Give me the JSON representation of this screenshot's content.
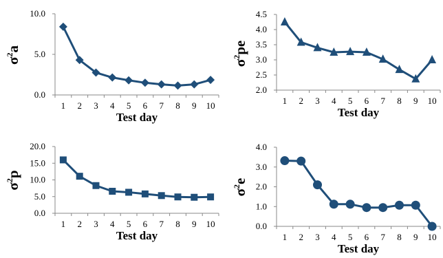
{
  "colors": {
    "series": "#1f4e79"
  },
  "chart_data": [
    {
      "type": "line",
      "marker": "diamond",
      "ylabel": {
        "base": "σ",
        "sup": "2",
        "rest": "a"
      },
      "xlabel": "Test day",
      "categories": [
        "1",
        "2",
        "3",
        "4",
        "5",
        "6",
        "7",
        "8",
        "9",
        "10"
      ],
      "values": [
        8.4,
        4.3,
        2.75,
        2.15,
        1.8,
        1.5,
        1.3,
        1.15,
        1.3,
        1.85
      ],
      "ylim": [
        0,
        10
      ],
      "yticks": [
        "0.0",
        "5.0",
        "10.0"
      ]
    },
    {
      "type": "line",
      "marker": "triangle",
      "ylabel": {
        "base": "σ",
        "sup": "2",
        "rest": "pe"
      },
      "xlabel": "Test day",
      "categories": [
        "1",
        "2",
        "3",
        "4",
        "5",
        "6",
        "7",
        "8",
        "9",
        "10"
      ],
      "values": [
        4.25,
        3.58,
        3.4,
        3.25,
        3.27,
        3.25,
        3.02,
        2.68,
        2.37,
        3.0
      ],
      "ylim": [
        2.0,
        4.5
      ],
      "yticks": [
        "2.0",
        "2.5",
        "3.0",
        "3.5",
        "4.0",
        "4.5"
      ]
    },
    {
      "type": "line",
      "marker": "square",
      "ylabel": {
        "base": "σ",
        "sup": "2",
        "rest": "p"
      },
      "xlabel": "Test day",
      "categories": [
        "1",
        "2",
        "3",
        "4",
        "5",
        "6",
        "7",
        "8",
        "9",
        "10"
      ],
      "values": [
        16.0,
        11.1,
        8.3,
        6.6,
        6.3,
        5.8,
        5.3,
        4.9,
        4.8,
        4.9
      ],
      "ylim": [
        0,
        20
      ],
      "yticks": [
        "0.0",
        "5.0",
        "10.0",
        "15.0",
        "20.0"
      ]
    },
    {
      "type": "line",
      "marker": "circle",
      "ylabel": {
        "base": "σ",
        "sup": "2",
        "rest": "e"
      },
      "xlabel": "Test day",
      "categories": [
        "1",
        "2",
        "3",
        "4",
        "5",
        "6",
        "7",
        "8",
        "9",
        "10"
      ],
      "values": [
        3.32,
        3.3,
        2.1,
        1.12,
        1.12,
        0.95,
        0.95,
        1.07,
        1.07,
        0.0
      ],
      "ylim": [
        0,
        4
      ],
      "yticks": [
        "0.0",
        "1.0",
        "2.0",
        "3.0",
        "4.0"
      ]
    }
  ]
}
